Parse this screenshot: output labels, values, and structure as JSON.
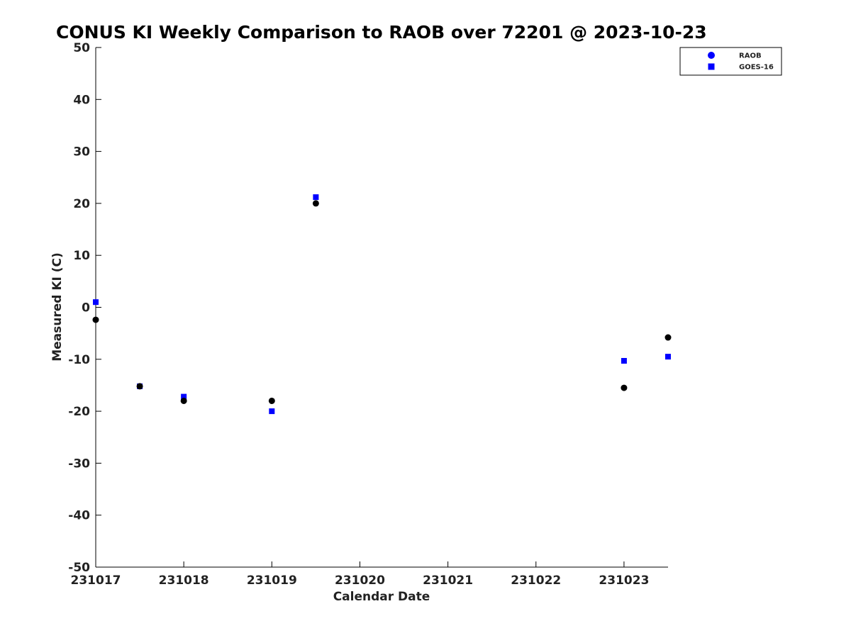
{
  "chart_data": {
    "type": "scatter",
    "title": "CONUS KI Weekly Comparison to RAOB over 72201 @ 2023-10-23",
    "xlabel": "Calendar Date",
    "ylabel": "Measured KI (C)",
    "xlim": [
      "2023-10-17",
      "2023-10-23T12:00"
    ],
    "ylim": [
      -50,
      50
    ],
    "x_ticks": [
      {
        "x": "2023-10-17",
        "label": "231017"
      },
      {
        "x": "2023-10-18",
        "label": "231018"
      },
      {
        "x": "2023-10-19",
        "label": "231019"
      },
      {
        "x": "2023-10-20",
        "label": "231020"
      },
      {
        "x": "2023-10-21",
        "label": "231021"
      },
      {
        "x": "2023-10-22",
        "label": "231022"
      },
      {
        "x": "2023-10-23",
        "label": "231023"
      }
    ],
    "y_ticks": [
      {
        "value": 50,
        "label": "50"
      },
      {
        "value": 40,
        "label": "40"
      },
      {
        "value": 30,
        "label": "30"
      },
      {
        "value": 20,
        "label": "20"
      },
      {
        "value": 10,
        "label": "10"
      },
      {
        "value": 0,
        "label": "0"
      },
      {
        "value": -10,
        "label": "-10"
      },
      {
        "value": -20,
        "label": "-20"
      },
      {
        "value": -30,
        "label": "-30"
      },
      {
        "value": -40,
        "label": "-40"
      },
      {
        "value": -50,
        "label": "-50"
      }
    ],
    "grid": false,
    "legend_position": "top-right",
    "series": [
      {
        "name": "RAOB",
        "marker": "circle",
        "legend_color": "#0000ff",
        "point_color": "#000000",
        "points": [
          {
            "x": "2023-10-17T00:00",
            "y": -2.4
          },
          {
            "x": "2023-10-17T12:00",
            "y": -15.2
          },
          {
            "x": "2023-10-18T00:00",
            "y": -18.0
          },
          {
            "x": "2023-10-19T00:00",
            "y": -18.0
          },
          {
            "x": "2023-10-19T12:00",
            "y": 20.0
          },
          {
            "x": "2023-10-23T00:00",
            "y": -15.5
          },
          {
            "x": "2023-10-23T12:00",
            "y": -5.8
          }
        ]
      },
      {
        "name": "GOES-16",
        "marker": "square",
        "legend_color": "#0000ff",
        "point_color": "#0000ff",
        "points": [
          {
            "x": "2023-10-17T00:00",
            "y": 1.0
          },
          {
            "x": "2023-10-17T12:00",
            "y": -15.2
          },
          {
            "x": "2023-10-18T00:00",
            "y": -17.2
          },
          {
            "x": "2023-10-19T00:00",
            "y": -20.0
          },
          {
            "x": "2023-10-19T12:00",
            "y": 21.2
          },
          {
            "x": "2023-10-23T00:00",
            "y": -10.3
          },
          {
            "x": "2023-10-23T12:00",
            "y": -9.5
          }
        ]
      }
    ]
  }
}
